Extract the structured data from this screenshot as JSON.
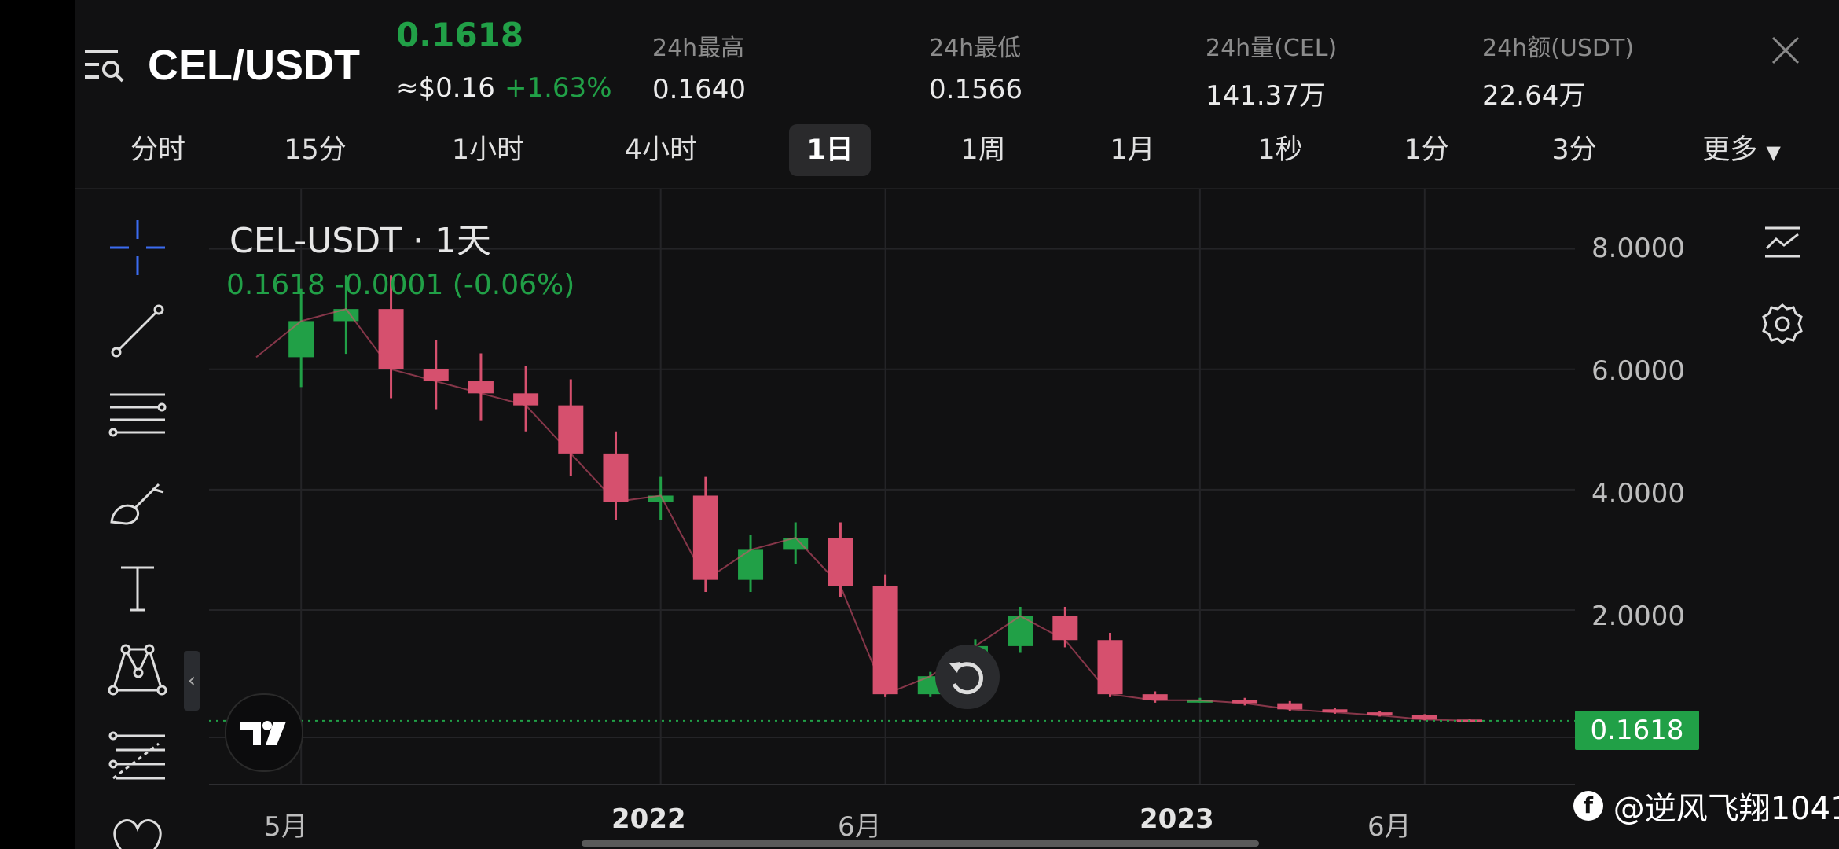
{
  "header": {
    "pair": "CEL/USDT",
    "price": "0.1618",
    "usd_price": "≈$0.16",
    "change_pct": "+1.63%",
    "stats": [
      {
        "label": "24h最高",
        "value": "0.1640"
      },
      {
        "label": "24h最低",
        "value": "0.1566"
      },
      {
        "label": "24h量(CEL)",
        "value": "141.37万"
      },
      {
        "label": "24h额(USDT)",
        "value": "22.64万"
      }
    ]
  },
  "tabs": [
    "分时",
    "15分",
    "1小时",
    "4小时",
    "1日",
    "1周",
    "1月",
    "1秒",
    "1分",
    "3分",
    "更多"
  ],
  "active_tab": "1日",
  "chart": {
    "symbol_label": "CEL-USDT · 1天",
    "last_line": "0.1618 -0.0001 (-0.06%)",
    "current_price_tag": "0.1618",
    "watermark": "@逆风飞翔1041"
  },
  "chart_data": {
    "type": "line",
    "title": "",
    "x": [
      "2021-04",
      "2021-05",
      "2021-06",
      "2021-07",
      "2021-08",
      "2021-09",
      "2021-10",
      "2021-11",
      "2021-12",
      "2022-01",
      "2022-02",
      "2022-03",
      "2022-04",
      "2022-05",
      "2022-06",
      "2022-07",
      "2022-08",
      "2022-09",
      "2022-10",
      "2022-11",
      "2022-12",
      "2023-01",
      "2023-02",
      "2023-03",
      "2023-04",
      "2023-05",
      "2023-06",
      "2023-07"
    ],
    "series": [
      {
        "values": [
          6.2,
          6.8,
          7.0,
          6.0,
          5.8,
          5.6,
          5.4,
          4.6,
          3.8,
          3.9,
          2.5,
          3.0,
          3.2,
          2.4,
          0.6,
          0.9,
          1.4,
          1.9,
          1.5,
          0.6,
          0.5,
          0.5,
          0.45,
          0.35,
          0.3,
          0.25,
          0.18,
          0.16
        ]
      }
    ],
    "x_ticks": [
      "5月",
      "2022",
      "6月",
      "2023",
      "6月"
    ],
    "y_ticks": [
      "8.0000",
      "6.0000",
      "4.0000",
      "2.0000"
    ],
    "ylim": [
      -0.9,
      9.0
    ],
    "up_color": "#21a047",
    "down_color": "#d6506e"
  },
  "icons": {
    "menu": "list-search-icon",
    "close": "close-icon",
    "dropdown": "caret-down-icon",
    "tools": [
      "crosshair-icon",
      "trendline-icon",
      "horizontal-lines-icon",
      "brush-icon",
      "text-icon",
      "pattern-icon",
      "fib-icon",
      "heart-icon"
    ],
    "right": [
      "indicator-icon",
      "settings-icon"
    ]
  }
}
